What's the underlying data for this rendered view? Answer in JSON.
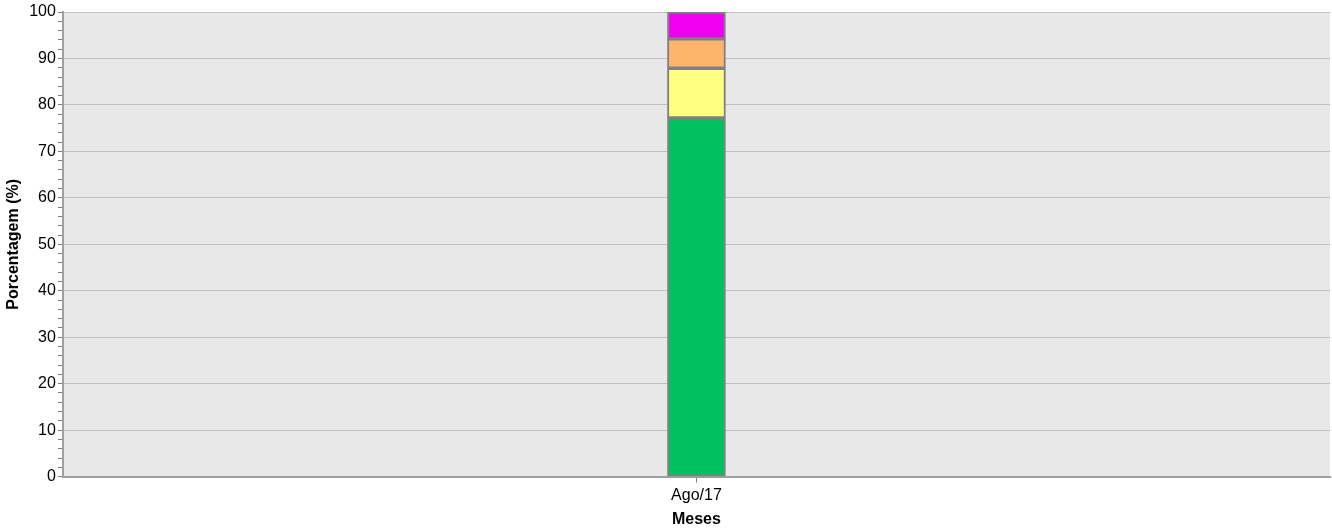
{
  "chart_data": {
    "type": "bar",
    "xlabel": "Meses",
    "ylabel": "Porcentagem (%)",
    "categories": [
      "Ago/17"
    ],
    "stacked": true,
    "series": [
      {
        "color": "#00c060",
        "values": [
          77.2
        ]
      },
      {
        "color": "#ffff80",
        "values": [
          10.7
        ]
      },
      {
        "color": "#ffb46e",
        "values": [
          6.3
        ]
      },
      {
        "color": "#f000f0",
        "values": [
          5.8
        ]
      }
    ],
    "ylim": [
      0,
      100
    ],
    "yticks": [
      0,
      {
        "value": 2,
        "label": null
      },
      {
        "value": 4,
        "label": null
      },
      {
        "value": 6,
        "label": null
      },
      {
        "value": 8,
        "label": null
      },
      10,
      {
        "value": 12,
        "label": null
      },
      {
        "value": 14,
        "label": null
      },
      {
        "value": 16,
        "label": null
      },
      {
        "value": 18,
        "label": null
      },
      20,
      {
        "value": 22,
        "label": null
      },
      {
        "value": 24,
        "label": null
      },
      {
        "value": 26,
        "label": null
      },
      {
        "value": 28,
        "label": null
      },
      30,
      {
        "value": 32,
        "label": null
      },
      {
        "value": 34,
        "label": null
      },
      {
        "value": 36,
        "label": null
      },
      {
        "value": 38,
        "label": null
      },
      40,
      {
        "value": 42,
        "label": null
      },
      {
        "value": 44,
        "label": null
      },
      {
        "value": 46,
        "label": null
      },
      {
        "value": 48,
        "label": null
      },
      50,
      {
        "value": 52,
        "label": null
      },
      {
        "value": 54,
        "label": null
      },
      {
        "value": 56,
        "label": null
      },
      {
        "value": 58,
        "label": null
      },
      60,
      {
        "value": 62,
        "label": null
      },
      {
        "value": 64,
        "label": null
      },
      {
        "value": 66,
        "label": null
      },
      {
        "value": 68,
        "label": null
      },
      70,
      {
        "value": 72,
        "label": null
      },
      {
        "value": 74,
        "label": null
      },
      {
        "value": 76,
        "label": null
      },
      {
        "value": 78,
        "label": null
      },
      80,
      {
        "value": 82,
        "label": null
      },
      {
        "value": 84,
        "label": null
      },
      {
        "value": 86,
        "label": null
      },
      {
        "value": 88,
        "label": null
      },
      90,
      {
        "value": 92,
        "label": null
      },
      {
        "value": 94,
        "label": null
      },
      {
        "value": 96,
        "label": null
      },
      {
        "value": 98,
        "label": null
      },
      100
    ],
    "grid": "y",
    "legend": false
  }
}
